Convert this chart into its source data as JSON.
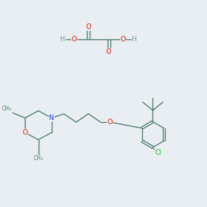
{
  "background_color": "#e8eef2",
  "bond_color": "#4a7a6a",
  "atom_colors": {
    "O": "#ee1100",
    "N": "#2233ff",
    "Cl": "#22bb22",
    "H": "#7a9a98",
    "C": "#4a7a6a"
  },
  "font_size_atom": 7.0,
  "font_size_small": 5.5,
  "lw": 1.0
}
